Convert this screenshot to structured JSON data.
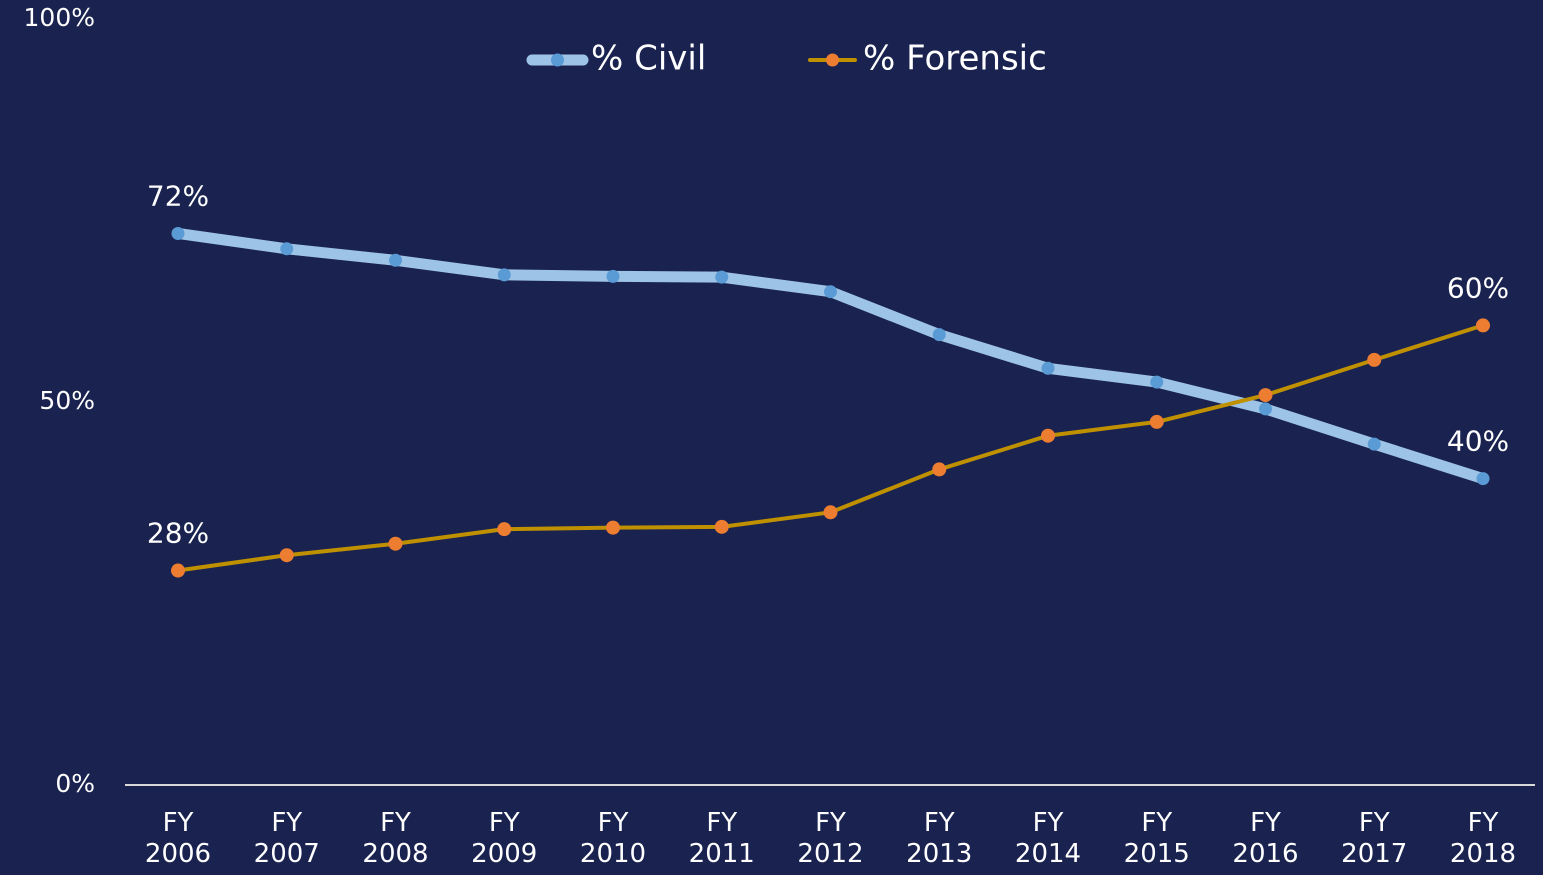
{
  "chart_data": {
    "type": "line",
    "categories": [
      "FY 2006",
      "FY 2007",
      "FY 2008",
      "FY 2009",
      "FY 2010",
      "FY 2011",
      "FY 2012",
      "FY 2013",
      "FY 2014",
      "FY 2015",
      "FY 2016",
      "FY 2017",
      "FY 2018"
    ],
    "series": [
      {
        "name": "% Civil",
        "color": "#9dc3e6",
        "marker_color": "#5b9bd5",
        "values": [
          72,
          70,
          68.5,
          66.6,
          66.4,
          66.3,
          64.4,
          58.8,
          54.4,
          52.6,
          49.1,
          44.5,
          40
        ],
        "value_labels": [
          "72%",
          null,
          null,
          null,
          null,
          null,
          null,
          null,
          null,
          null,
          null,
          null,
          "40%"
        ]
      },
      {
        "name": "% Forensic",
        "color": "#bf9000",
        "marker_color": "#ed7d31",
        "values": [
          28,
          30,
          31.5,
          33.4,
          33.6,
          33.7,
          35.6,
          41.2,
          45.6,
          47.4,
          50.9,
          55.5,
          60
        ],
        "value_labels": [
          "28%",
          null,
          null,
          null,
          null,
          null,
          null,
          null,
          null,
          null,
          null,
          null,
          "60%"
        ]
      }
    ],
    "ylim": [
      0,
      100
    ],
    "yticks": [
      {
        "value": 0,
        "label": "0%"
      },
      {
        "value": 50,
        "label": "50%"
      },
      {
        "value": 100,
        "label": "100%"
      }
    ],
    "grid": false,
    "legend": "top"
  }
}
